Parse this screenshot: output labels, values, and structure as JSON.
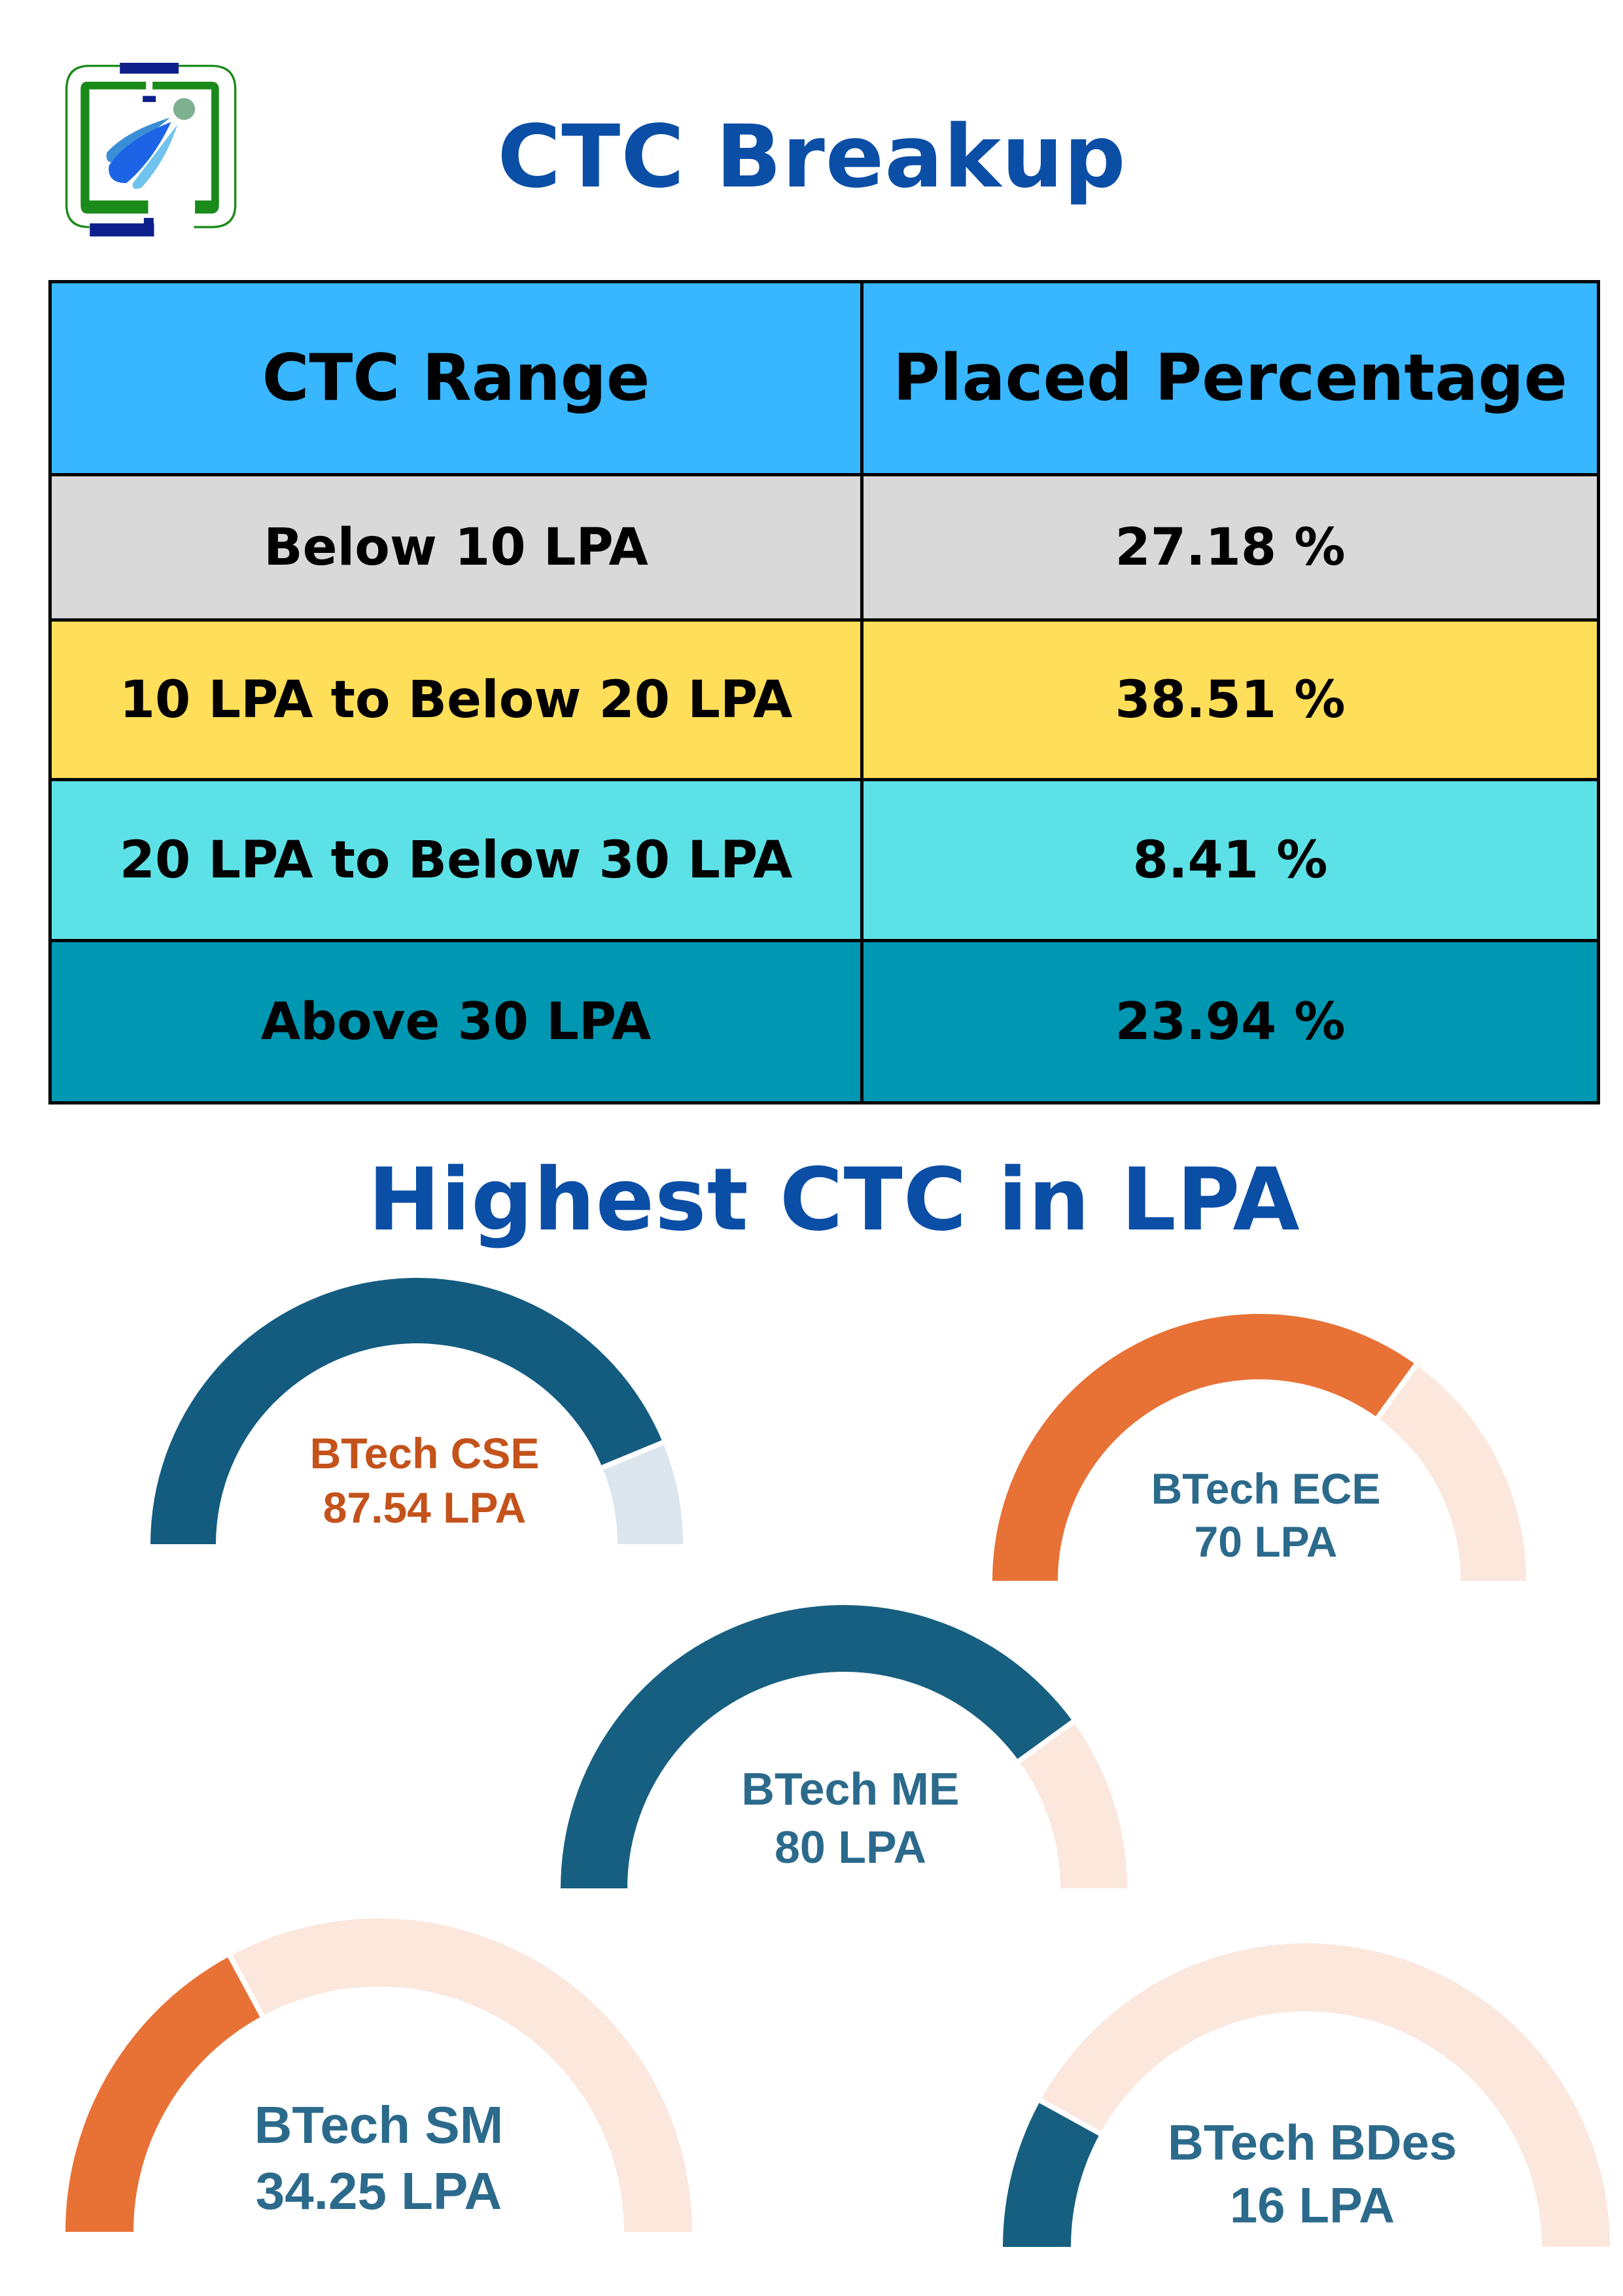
{
  "header": {
    "title": "CTC Breakup",
    "logo": "institute-logo"
  },
  "table": {
    "columns": [
      "CTC Range",
      "Placed Percentage"
    ],
    "rows": [
      {
        "range": "Below 10 LPA",
        "percent": "27.18 %",
        "color": "#d9d9d9"
      },
      {
        "range": "10 LPA to Below 20 LPA",
        "percent": "38.51 %",
        "color": "#ffde59"
      },
      {
        "range": "20 LPA to Below 30 LPA",
        "percent": "8.41 %",
        "color": "#5ce1e6"
      },
      {
        "range": "Above 30 LPA",
        "percent": "23.94 %",
        "color": "#0097b2"
      }
    ],
    "header_color": "#38b6ff"
  },
  "highest": {
    "title": "Highest CTC in LPA",
    "gauge_max": 100,
    "gauges": [
      {
        "program": "BTech CSE",
        "value_label": "87.54 LPA",
        "value": 87.54,
        "fill": "#135c80",
        "track": "#dbe6ee",
        "text_color": "#c4521b"
      },
      {
        "program": "BTech ECE",
        "value_label": "70 LPA",
        "value": 70,
        "fill": "#e87136",
        "track": "#fbe7dc",
        "text_color": "#2c6a8c"
      },
      {
        "program": "BTech ME",
        "value_label": "80 LPA",
        "value": 80,
        "fill": "#175f80",
        "track": "#fbe7dc",
        "text_color": "#2c6a8c"
      },
      {
        "program": "BTech SM",
        "value_label": "34.25 LPA",
        "value": 34.25,
        "fill": "#e87136",
        "track": "#fbe7dc",
        "text_color": "#2c6a8c"
      },
      {
        "program": "BTech BDes",
        "value_label": "16 LPA",
        "value": 16,
        "fill": "#175f80",
        "track": "#fbe7dc",
        "text_color": "#2c6a8c"
      }
    ]
  }
}
